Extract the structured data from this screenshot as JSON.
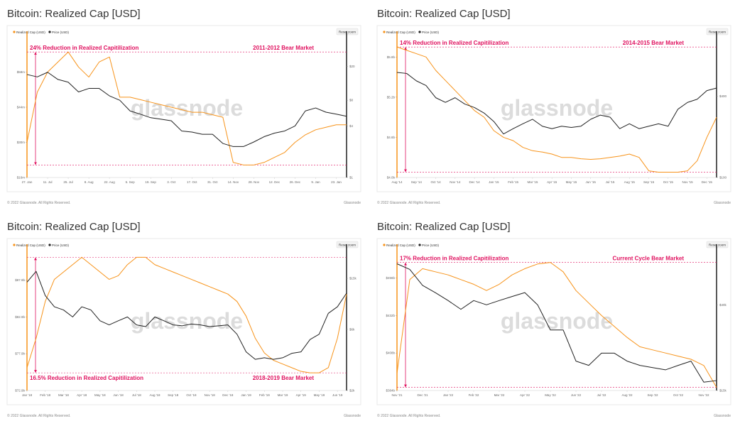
{
  "chart_data": [
    {
      "type": "line",
      "title": "Bitcoin: Realized Cap [USD]",
      "button": "Reset zoom",
      "watermark": "glassnode",
      "footer_left": "© 2022 Glassnode. All Rights Reserved.",
      "footer_right": "Glassnode",
      "annotations": [
        "24% Reduction in Realized Capitilization",
        "2011-2012 Bear Market"
      ],
      "annotation_position": "top",
      "categories": [
        "27. Jan",
        null,
        "11. Jul",
        null,
        "25. Jul",
        null,
        "8. Aug",
        null,
        "22. Aug",
        null,
        "5. Sep",
        null,
        "19. Sep",
        null,
        "3. Oct",
        null,
        "17. Oct",
        null,
        "31. Oct",
        null,
        "14. Nov",
        null,
        "28. Nov",
        null,
        "12. Dec",
        null,
        "26. Dec",
        null,
        "9. Jan",
        null,
        "23. Jan",
        null
      ],
      "series": [
        {
          "name": "Realized Cap (USD)",
          "color": "#f7931a",
          "values": [
            30,
            50,
            58,
            62,
            66,
            60,
            56,
            62,
            64,
            48,
            48,
            47,
            46,
            45,
            44,
            43,
            42,
            42,
            41,
            40,
            22,
            21,
            21,
            22,
            24,
            26,
            30,
            33,
            35,
            36,
            37,
            37
          ]
        },
        {
          "name": "Price (USD)",
          "color": "#222222",
          "axis": "y2",
          "values": [
            16,
            15,
            17,
            14,
            13,
            10,
            11,
            11,
            9,
            8,
            6,
            5.5,
            5,
            4.8,
            4.6,
            3.5,
            3.4,
            3.2,
            3.2,
            2.5,
            2.3,
            2.3,
            2.6,
            3,
            3.3,
            3.5,
            4,
            6,
            6.5,
            5.8,
            5.5,
            5.2
          ]
        }
      ],
      "ylim": [
        16,
        72
      ],
      "yticks": [
        {
          "value": 16,
          "label": "$16m"
        },
        {
          "value": 30,
          "label": "$30m"
        },
        {
          "value": 44,
          "label": "$44m"
        },
        {
          "value": 58,
          "label": "$58m"
        }
      ],
      "y2lim": [
        1,
        44
      ],
      "y2log": true,
      "y2ticks": [
        {
          "value": 1,
          "label": "$1"
        },
        {
          "value": 4,
          "label": "$4"
        },
        {
          "value": 8,
          "label": "$8"
        },
        {
          "value": 20,
          "label": "$20"
        }
      ]
    },
    {
      "type": "line",
      "title": "Bitcoin: Realized Cap [USD]",
      "button": "Reset zoom",
      "watermark": "glassnode",
      "footer_left": "© 2022 Glassnode. All Rights Reserved.",
      "footer_right": "Glassnode",
      "annotations": [
        "14% Reduction in Realized Capitilization",
        "2014-2015 Bear Market"
      ],
      "annotation_position": "top",
      "categories": [
        "Aug '14",
        null,
        "Sep '14",
        null,
        "Oct '14",
        null,
        "Nov '14",
        null,
        "Dec '14",
        null,
        "Jan '15",
        null,
        "Feb '15",
        null,
        "Mar '15",
        null,
        "Apr '15",
        null,
        "May '15",
        null,
        "Jun '15",
        null,
        "Jul '15",
        null,
        "Aug '15",
        null,
        "Sep '15",
        null,
        "Oct '15",
        null,
        "Nov '15",
        null,
        "Dec '15",
        null
      ],
      "series": [
        {
          "name": "Realized Cap (USD)",
          "color": "#f7931a",
          "values": [
            5.95,
            5.9,
            5.85,
            5.8,
            5.6,
            5.45,
            5.3,
            5.15,
            5.0,
            4.9,
            4.7,
            4.6,
            4.55,
            4.45,
            4.4,
            4.38,
            4.35,
            4.3,
            4.3,
            4.28,
            4.27,
            4.28,
            4.3,
            4.32,
            4.35,
            4.3,
            4.1,
            4.08,
            4.08,
            4.08,
            4.1,
            4.25,
            4.6,
            4.9
          ]
        },
        {
          "name": "Price (USD)",
          "color": "#222222",
          "axis": "y2",
          "values": [
            600,
            590,
            520,
            480,
            390,
            360,
            390,
            350,
            330,
            300,
            260,
            210,
            230,
            250,
            270,
            240,
            230,
            240,
            235,
            240,
            270,
            290,
            280,
            230,
            250,
            230,
            240,
            250,
            240,
            320,
            360,
            380,
            440,
            460
          ]
        }
      ],
      "ylim": [
        4.0,
        6.1
      ],
      "yticks": [
        {
          "value": 4.0,
          "label": "$4.0b"
        },
        {
          "value": 4.6,
          "label": "$4.6b"
        },
        {
          "value": 5.2,
          "label": "$5.2b"
        },
        {
          "value": 5.8,
          "label": "$5.8b"
        }
      ],
      "y2lim": [
        100,
        1100
      ],
      "y2log": true,
      "y2ticks": [
        {
          "value": 100,
          "label": "$100"
        },
        {
          "value": 400,
          "label": "$400"
        }
      ]
    },
    {
      "type": "line",
      "title": "Bitcoin: Realized Cap [USD]",
      "button": "Reset zoom",
      "watermark": "glassnode",
      "footer_left": "© 2022 Glassnode. All Rights Reserved.",
      "footer_right": "Glassnode",
      "annotations": [
        "16.5% Reduction in Realized Capitilization",
        "2018-2019 Bear Market"
      ],
      "annotation_position": "bottom",
      "categories": [
        "Jan '18",
        null,
        "Feb '18",
        null,
        "Mar '18",
        null,
        "Apr '18",
        null,
        "May '18",
        null,
        "Jun '18",
        null,
        "Jul '18",
        null,
        "Aug '18",
        null,
        "Sep '18",
        null,
        "Oct '18",
        null,
        "Nov '18",
        null,
        "Dec '18",
        null,
        "Jan '19",
        null,
        "Feb '19",
        null,
        "Mar '19",
        null,
        "Apr '19",
        null,
        "May '19",
        null,
        "Jun '19",
        null
      ],
      "series": [
        {
          "name": "Realized Cap (USD)",
          "color": "#f7931a",
          "values": [
            76,
            80,
            85,
            88,
            89,
            90,
            91,
            90,
            89,
            88,
            88.5,
            90,
            91,
            91,
            90,
            89.5,
            89,
            88.5,
            88,
            87.5,
            87,
            86.5,
            86,
            85,
            83,
            80,
            78,
            77,
            76.5,
            76,
            75.5,
            75.3,
            75.3,
            76,
            80,
            86
          ]
        },
        {
          "name": "Price (USD)",
          "color": "#222222",
          "axis": "y2",
          "values": [
            14000,
            17000,
            11000,
            9000,
            8500,
            7500,
            9000,
            8500,
            7000,
            6500,
            7000,
            7500,
            6500,
            6300,
            7500,
            7000,
            6500,
            6400,
            6600,
            6500,
            6300,
            6400,
            6500,
            5500,
            4000,
            3500,
            3600,
            3500,
            3600,
            3900,
            4000,
            5000,
            5500,
            8000,
            9000,
            11500
          ]
        }
      ],
      "ylim": [
        72.9,
        92
      ],
      "yticks": [
        {
          "value": 72.9,
          "label": "$72.9b"
        },
        {
          "value": 77.9,
          "label": "$77.9b"
        },
        {
          "value": 82.9,
          "label": "$82.9b"
        },
        {
          "value": 87.9,
          "label": "$87.9b"
        }
      ],
      "y2lim": [
        2000,
        25000
      ],
      "y2log": true,
      "y2ticks": [
        {
          "value": 2000,
          "label": "$2k"
        },
        {
          "value": 6000,
          "label": "$6k"
        },
        {
          "value": 15000,
          "label": "$15k"
        }
      ]
    },
    {
      "type": "line",
      "title": "Bitcoin: Realized Cap [USD]",
      "button": "Reset zoom",
      "watermark": "glassnode",
      "footer_left": "© 2022 Glassnode. All Rights Reserved.",
      "footer_right": "Glassnode",
      "annotations": [
        "17% Reduction in Realized Capitilization",
        "Current Cycle Bear Market"
      ],
      "annotation_position": "top",
      "categories": [
        "Nov '21",
        null,
        "Dec '21",
        null,
        "Jan '22",
        null,
        "Feb '22",
        null,
        "Mar '22",
        null,
        "Apr '22",
        null,
        "May '22",
        null,
        "Jun '22",
        null,
        "Jul '22",
        null,
        "Aug '22",
        null,
        "Sep '22",
        null,
        "Oct '22",
        null,
        "Nov '22",
        null
      ],
      "series": [
        {
          "name": "Realized Cap (USD)",
          "color": "#f7931a",
          "values": [
            395,
            455,
            462,
            460,
            458,
            455,
            452,
            448,
            452,
            458,
            462,
            465,
            466,
            460,
            448,
            440,
            432,
            425,
            418,
            412,
            410,
            408,
            406,
            404,
            400,
            386
          ]
        },
        {
          "name": "Price (USD)",
          "color": "#222222",
          "axis": "y2",
          "values": [
            64000,
            60000,
            50000,
            46000,
            42000,
            38000,
            42000,
            40000,
            42000,
            44000,
            46000,
            40000,
            30000,
            30000,
            21000,
            20000,
            23000,
            23000,
            21000,
            20000,
            19500,
            19000,
            20000,
            21000,
            16500,
            16800
          ]
        }
      ],
      "ylim": [
        384,
        474
      ],
      "yticks": [
        {
          "value": 384,
          "label": "$384b"
        },
        {
          "value": 408,
          "label": "$408b"
        },
        {
          "value": 432,
          "label": "$432b"
        },
        {
          "value": 456,
          "label": "$456b"
        }
      ],
      "y2lim": [
        15000,
        75000
      ],
      "y2log": true,
      "y2ticks": [
        {
          "value": 15000,
          "label": "$15k"
        },
        {
          "value": 40000,
          "label": "$40k"
        }
      ]
    }
  ]
}
